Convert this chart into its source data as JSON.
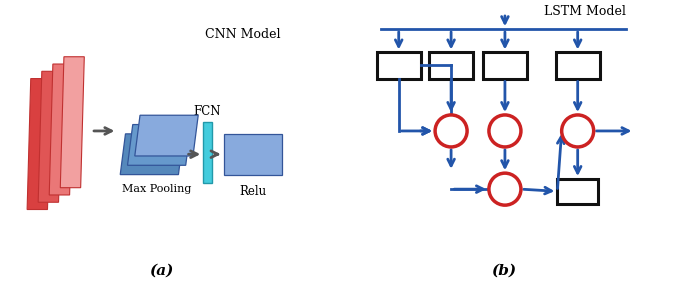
{
  "fig_width": 6.85,
  "fig_height": 2.91,
  "dpi": 100,
  "bg_color": "#ffffff",
  "cnn_title": "CNN Model",
  "lstm_title": "LSTM Model",
  "label_a": "(a)",
  "label_b": "(b)",
  "pink_colors_dark": [
    "#d94040",
    "#e05555",
    "#ea7777",
    "#f2a0a0"
  ],
  "pink_edge": "#c03030",
  "blue_pool_colors": [
    "#5588bb",
    "#6699cc",
    "#88aadd"
  ],
  "blue_pool_edge": "#335599",
  "cyan_color": "#44ccdd",
  "cyan_edge": "#2299aa",
  "relu_color": "#88aadd",
  "relu_edge": "#335599",
  "arrow_gray": "#555555",
  "blue_arrow": "#2255aa",
  "red_circle": "#cc2222",
  "black_stroke": "#111111"
}
